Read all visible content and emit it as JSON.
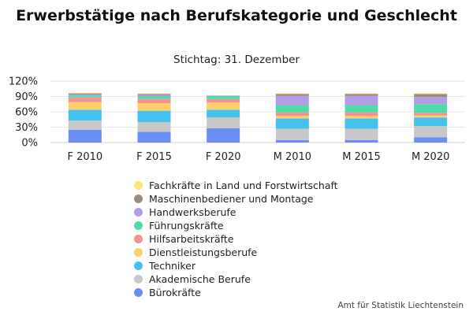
{
  "chart_data": {
    "type": "bar",
    "stacked": true,
    "title": "Erwerbstätige nach Berufskategorie und Geschlecht",
    "subtitle": "Stichtag: 31. Dezember",
    "source": "Amt für Statistik Liechtenstein",
    "categories": [
      "F 2010",
      "F 2015",
      "F 2020",
      "M 2010",
      "M 2015",
      "M 2020"
    ],
    "y_ticks": [
      "0%",
      "30%",
      "60%",
      "90%",
      "120%"
    ],
    "ylim": [
      0,
      120
    ],
    "grid": true,
    "legend_position": "bottom",
    "series": [
      {
        "name": "Bürokräfte",
        "color": "#6b8ef5",
        "values": [
          25,
          21,
          28,
          5,
          5,
          10
        ]
      },
      {
        "name": "Akademische Berufe",
        "color": "#c8c8c8",
        "values": [
          18,
          19,
          21,
          22,
          22,
          22
        ]
      },
      {
        "name": "Techniker",
        "color": "#45c1ee",
        "values": [
          21,
          22,
          15,
          20,
          20,
          17
        ]
      },
      {
        "name": "Dienstleistungsberufe",
        "color": "#f9d06b",
        "values": [
          15,
          15,
          14,
          5,
          5,
          4
        ]
      },
      {
        "name": "Hilfsarbeitskräfte",
        "color": "#f59191",
        "values": [
          9,
          8,
          7,
          7,
          7,
          5
        ]
      },
      {
        "name": "Führungskräfte",
        "color": "#4fdcab",
        "values": [
          4,
          5,
          6,
          14,
          14,
          17
        ]
      },
      {
        "name": "Handwerksberufe",
        "color": "#b39ce8",
        "values": [
          2,
          3,
          1,
          18,
          18,
          14
        ]
      },
      {
        "name": "Maschinenbediener und Montage",
        "color": "#9c8c80",
        "values": [
          2,
          2,
          0,
          4,
          4,
          6
        ]
      },
      {
        "name": "Fachkräfte in Land und Forstwirtschaft",
        "color": "#fbe774",
        "values": [
          1,
          1,
          0,
          1,
          1,
          1
        ]
      }
    ]
  }
}
